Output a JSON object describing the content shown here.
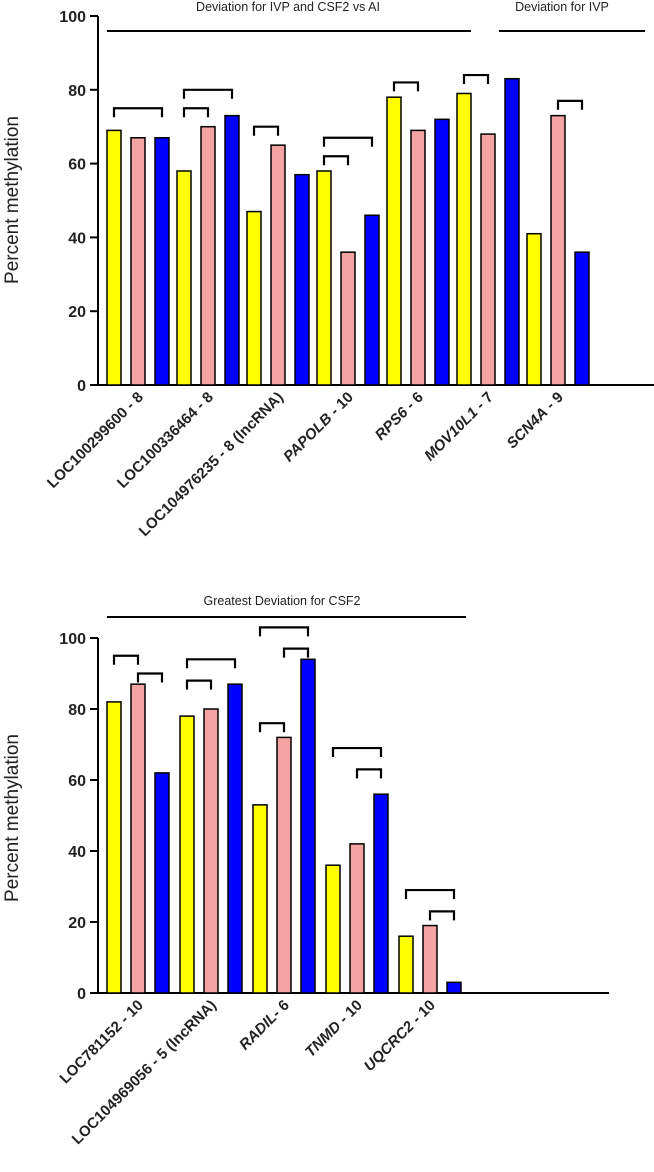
{
  "chart_data": [
    {
      "type": "bar",
      "panel": "top",
      "ylabel": "Percent methylation",
      "ylim": [
        0,
        100
      ],
      "yticks": [
        0,
        20,
        40,
        60,
        80,
        100
      ],
      "series_colors": [
        "#ffff00",
        "#f4a3a3",
        "#0000ff"
      ],
      "categories": [
        {
          "name": "LOC100299600",
          "suffix": " - 8",
          "italic": false
        },
        {
          "name": "LOC100336464",
          "suffix": " - 8",
          "italic": false
        },
        {
          "name": "LOC104976235",
          "suffix": " - 8 (lncRNA)",
          "italic": false
        },
        {
          "name": "PAPOLB",
          "suffix": " - 10",
          "italic": true
        },
        {
          "name": "RPS6",
          "suffix": " - 6",
          "italic": true
        },
        {
          "name": "MOV10L1",
          "suffix": " - 7",
          "italic": true
        },
        {
          "name": "SCN4A",
          "suffix": " - 9",
          "italic": true
        }
      ],
      "values": [
        [
          69,
          67,
          67
        ],
        [
          58,
          70,
          73
        ],
        [
          47,
          65,
          57
        ],
        [
          58,
          36,
          46
        ],
        [
          78,
          69,
          72
        ],
        [
          79,
          68,
          83
        ],
        [
          41,
          73,
          36
        ]
      ],
      "group_labels": [
        {
          "text": "Deviation for IVP and CSF2 vs AI"
        },
        {
          "text": "Deviation for IVP"
        }
      ],
      "brackets": [
        {
          "cat": 0,
          "from": 0,
          "to": 2,
          "level": 75
        },
        {
          "cat": 1,
          "from": 0,
          "to": 1,
          "level": 75
        },
        {
          "cat": 1,
          "from": 0,
          "to": 2,
          "level": 80
        },
        {
          "cat": 2,
          "from": 0,
          "to": 1,
          "level": 70
        },
        {
          "cat": 3,
          "from": 0,
          "to": 1,
          "level": 62
        },
        {
          "cat": 3,
          "from": 0,
          "to": 2,
          "level": 67
        },
        {
          "cat": 4,
          "from": 0,
          "to": 1,
          "level": 82
        },
        {
          "cat": 5,
          "from": 0,
          "to": 1,
          "level": 84
        },
        {
          "cat": 6,
          "from": 1,
          "to": 2,
          "level": 77
        }
      ]
    },
    {
      "type": "bar",
      "panel": "bottom",
      "ylabel": "Percent methylation",
      "ylim": [
        0,
        100
      ],
      "yticks": [
        0,
        20,
        40,
        60,
        80,
        100
      ],
      "series_colors": [
        "#ffff00",
        "#f4a3a3",
        "#0000ff"
      ],
      "categories": [
        {
          "name": "LOC781152",
          "suffix": " - 10",
          "italic": false
        },
        {
          "name": "LOC104969056",
          "suffix": " - 5 (lncRNA)",
          "italic": false
        },
        {
          "name": "RADIL",
          "suffix": "- 6",
          "italic": true
        },
        {
          "name": "TNMD",
          "suffix": " - 10",
          "italic": true
        },
        {
          "name": "UQCRC2",
          "suffix": " - 10",
          "italic": true
        }
      ],
      "values": [
        [
          82,
          87,
          62
        ],
        [
          78,
          80,
          87
        ],
        [
          53,
          72,
          94
        ],
        [
          36,
          42,
          56
        ],
        [
          16,
          19,
          3
        ]
      ],
      "group_labels": [
        {
          "text": "Greatest Deviation for CSF2"
        }
      ],
      "brackets": [
        {
          "cat": 0,
          "from": 0,
          "to": 1,
          "level": 95
        },
        {
          "cat": 0,
          "from": 1,
          "to": 2,
          "level": 90
        },
        {
          "cat": 1,
          "from": 0,
          "to": 1,
          "level": 88
        },
        {
          "cat": 1,
          "from": 0,
          "to": 2,
          "level": 94
        },
        {
          "cat": 2,
          "from": 0,
          "to": 1,
          "level": 76
        },
        {
          "cat": 2,
          "from": 1,
          "to": 2,
          "level": 97
        },
        {
          "cat": 2,
          "from": 0,
          "to": 2,
          "level": 103
        },
        {
          "cat": 3,
          "from": 0,
          "to": 2,
          "level": 69
        },
        {
          "cat": 3,
          "from": 1,
          "to": 2,
          "level": 63
        },
        {
          "cat": 4,
          "from": 1,
          "to": 2,
          "level": 23
        },
        {
          "cat": 4,
          "from": 0,
          "to": 2,
          "level": 29
        }
      ]
    }
  ]
}
